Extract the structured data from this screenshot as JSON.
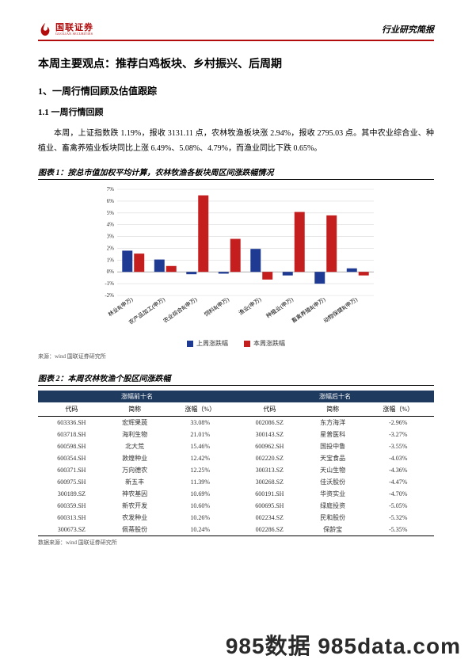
{
  "header": {
    "logo_cn": "国联证券",
    "logo_en": "GUOLIAN SECURITIES",
    "report_type": "行业研究简报"
  },
  "title": "本周主要观点：推荐白鸡板块、乡村振兴、后周期",
  "section1": "1、一周行情回顾及估值跟踪",
  "subsection11": "1.1 一周行情回顾",
  "body": "本周，上证指数跌 1.19%，报收 3131.11 点，农林牧渔板块涨 2.94%，报收 2795.03 点。其中农业综合业、种植业、畜禽养殖业板块同比上涨 6.49%、5.08%、4.79%，而渔业同比下跌 0.65%。",
  "chart1": {
    "title": "图表 1：按总市值加权平均计算，农林牧渔各板块周区间涨跌幅情况",
    "type": "bar",
    "categories": [
      "林业Ⅱ(申万)",
      "农产品加工(申万)",
      "农业综合Ⅱ(申万)",
      "饲料Ⅱ(申万)",
      "渔业(申万)",
      "种植业(申万)",
      "畜禽养殖Ⅱ(申万)",
      "动物保健Ⅱ(申万)"
    ],
    "series": [
      {
        "name": "上周涨跌幅",
        "color": "#1f3a93",
        "values": [
          1.8,
          1.05,
          -0.2,
          -0.15,
          1.95,
          -0.3,
          -1.0,
          0.3
        ]
      },
      {
        "name": "本周涨跌幅",
        "color": "#c41e1e",
        "values": [
          1.55,
          0.5,
          6.49,
          2.8,
          -0.65,
          5.08,
          4.79,
          -0.3
        ]
      }
    ],
    "ylim": [
      -2,
      7
    ],
    "ytick_step": 1,
    "grid_color": "#d9d9d9",
    "background_color": "#ffffff",
    "bar_gap": 0.05,
    "bar_width": 0.32,
    "label_fontsize": 7
  },
  "chart1_source": "来源：wind  国联证券研究所",
  "table2": {
    "title": "图表 2：本周农林牧渔个股区间涨跌幅",
    "group_headers": [
      "涨幅前十名",
      "涨幅后十名"
    ],
    "columns": [
      "代码",
      "简称",
      "涨幅（%）",
      "代码",
      "简称",
      "涨幅（%）"
    ],
    "rows": [
      [
        "603336.SH",
        "宏辉果蔬",
        "33.08%",
        "002086.SZ",
        "东方海洋",
        "-2.96%"
      ],
      [
        "603718.SH",
        "海利生物",
        "21.01%",
        "300143.SZ",
        "星普医科",
        "-3.27%"
      ],
      [
        "600598.SH",
        "北大荒",
        "15.46%",
        "600962.SH",
        "国投中鲁",
        "-3.55%"
      ],
      [
        "600354.SH",
        "敦煌种业",
        "12.42%",
        "002220.SZ",
        "天宝食品",
        "-4.03%"
      ],
      [
        "600371.SH",
        "万向德农",
        "12.25%",
        "300313.SZ",
        "天山生物",
        "-4.36%"
      ],
      [
        "600975.SH",
        "新五丰",
        "11.39%",
        "300268.SZ",
        "佳沃股份",
        "-4.47%"
      ],
      [
        "300189.SZ",
        "神农基因",
        "10.69%",
        "600191.SH",
        "华资实业",
        "-4.70%"
      ],
      [
        "600359.SH",
        "新农开发",
        "10.60%",
        "600695.SH",
        "绿庭投资",
        "-5.05%"
      ],
      [
        "600313.SH",
        "农发种业",
        "10.26%",
        "002234.SZ",
        "民和股份",
        "-5.32%"
      ],
      [
        "300673.SZ",
        "佩蒂股份",
        "10.24%",
        "002286.SZ",
        "保龄宝",
        "-5.35%"
      ]
    ],
    "source": "数据来源：wind   国联证券研究所"
  },
  "watermark": "985数据 985data.com"
}
